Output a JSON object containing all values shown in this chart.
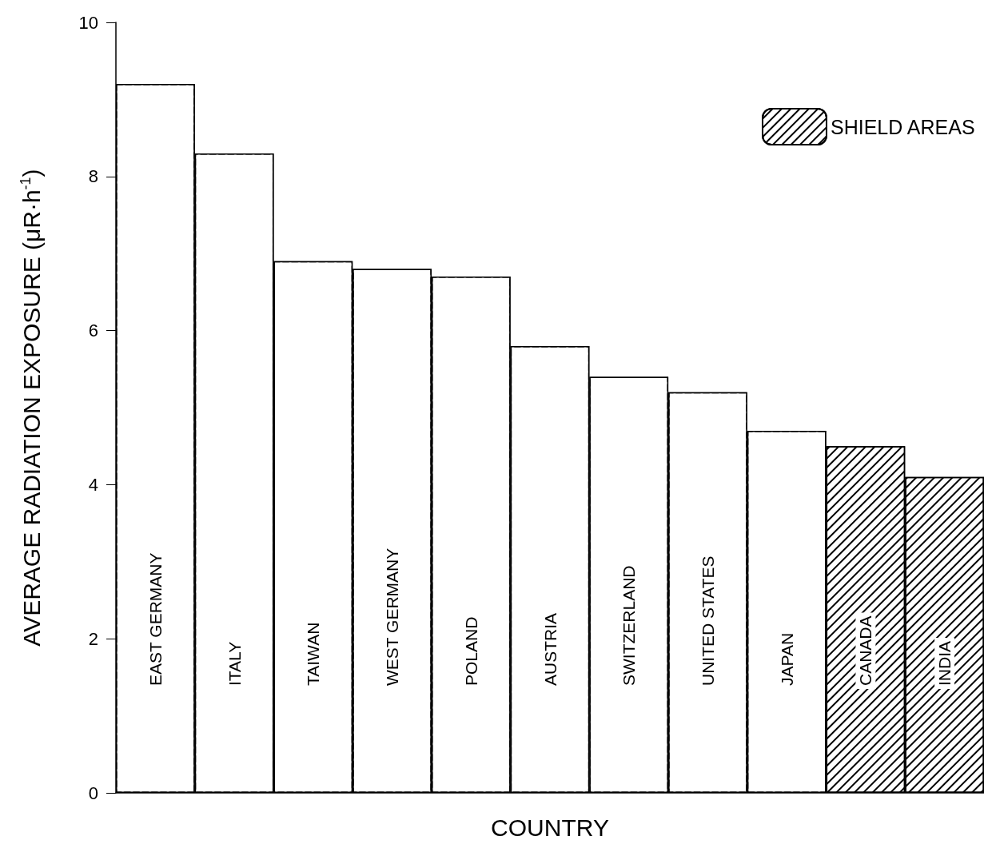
{
  "chart_data": {
    "type": "bar",
    "xlabel": "COUNTRY",
    "ylabel": "AVERAGE RADIATION EXPOSURE (μR·h$^{-1}$)",
    "categories": [
      "EAST GERMANY",
      "ITALY",
      "TAIWAN",
      "WEST GERMANY",
      "POLAND",
      "AUSTRIA",
      "SWITZERLAND",
      "UNITED STATES",
      "JAPAN",
      "CANADA",
      "INDIA"
    ],
    "series": [
      {
        "color": "#ffffff",
        "values": [
          9.2,
          8.3,
          6.9,
          6.8,
          6.7,
          5.8,
          5.4,
          5.2,
          4.7,
          null,
          null
        ]
      },
      {
        "name": "SHIELD AREAS",
        "color": "#000000",
        "values": [
          null,
          null,
          null,
          null,
          null,
          null,
          null,
          null,
          null,
          4.5,
          4.1
        ]
      }
    ],
    "ylim": [
      0,
      10
    ],
    "yticks": [
      0,
      2,
      4,
      6,
      8,
      10
    ],
    "grid": false,
    "legend": "top right"
  }
}
